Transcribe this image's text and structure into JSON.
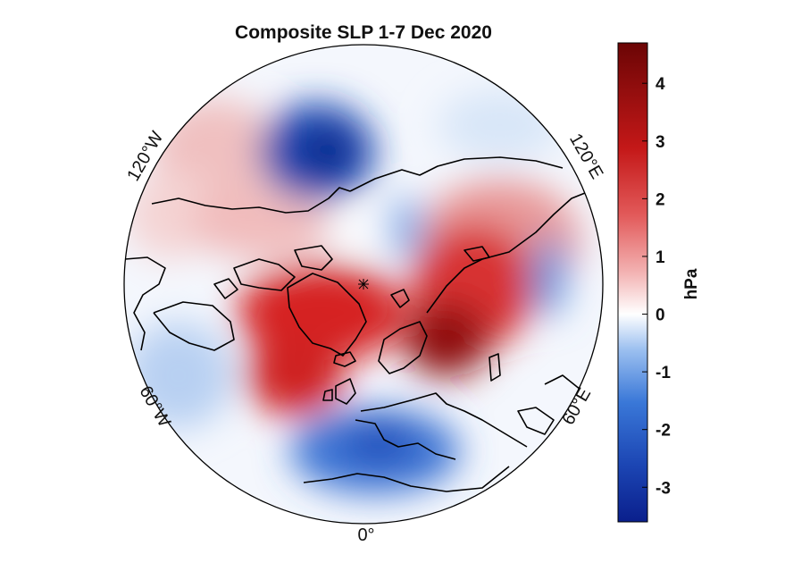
{
  "title": "Composite SLP 1-7 Dec 2020",
  "colorbar": {
    "label": "hPa",
    "min": -3.6,
    "max": 4.7,
    "ticks": [
      {
        "value": 4,
        "label": "4"
      },
      {
        "value": 3,
        "label": "3"
      },
      {
        "value": 2,
        "label": "2"
      },
      {
        "value": 1,
        "label": "1"
      },
      {
        "value": 0,
        "label": "0"
      },
      {
        "value": -1,
        "label": "-1"
      },
      {
        "value": -2,
        "label": "-2"
      },
      {
        "value": -3,
        "label": "-3"
      }
    ],
    "colors": {
      "neg_max": "#0a1f8c",
      "neg_mid": "#3a78d8",
      "neutral": "#ffffff",
      "pos_mid": "#d83a3a",
      "pos_max": "#6b0505"
    }
  },
  "longitude_labels": {
    "w120": "120°W",
    "e120": "120°E",
    "w60": "60°W",
    "e60": "60°E",
    "zero": "0°"
  },
  "map": {
    "projection": "north-polar-stereographic",
    "field": "sea level pressure anomaly",
    "anomaly_centers": [
      {
        "name": "aleutian-low",
        "sign": "negative",
        "value": -3.3
      },
      {
        "name": "greenland-iceland-high",
        "sign": "positive",
        "value": 3.2
      },
      {
        "name": "scandinavian-siberian-high",
        "sign": "positive",
        "value": 4.3
      },
      {
        "name": "mediterranean-low",
        "sign": "negative",
        "value": -2.8
      },
      {
        "name": "central-asia-low",
        "sign": "negative",
        "value": -1.2
      }
    ]
  }
}
